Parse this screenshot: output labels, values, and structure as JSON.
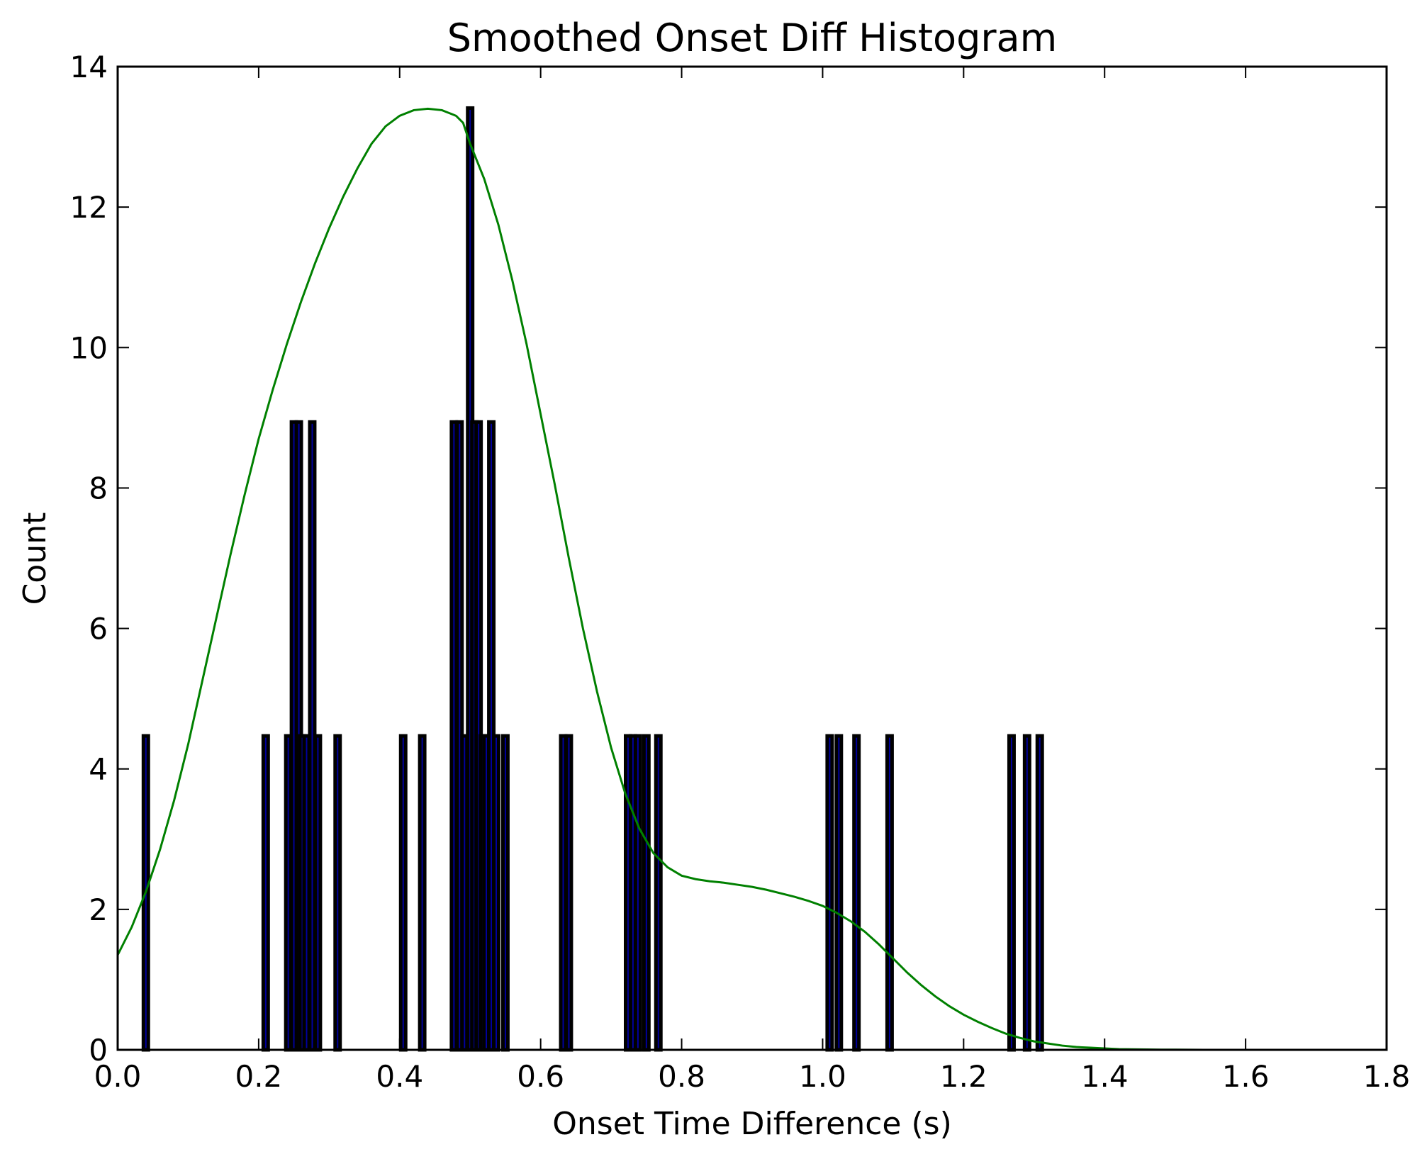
{
  "chart_data": {
    "type": "bar",
    "title": "Smoothed Onset Diff Histogram",
    "xlabel": "Onset Time Difference (s)",
    "ylabel": "Count",
    "xlim": [
      0.0,
      1.8
    ],
    "ylim": [
      0,
      14
    ],
    "xticks": [
      "0.0",
      "0.2",
      "0.4",
      "0.6",
      "0.8",
      "1.0",
      "1.2",
      "1.4",
      "1.6",
      "1.8"
    ],
    "yticks": [
      "0",
      "2",
      "4",
      "6",
      "8",
      "10",
      "12",
      "14"
    ],
    "grid": false,
    "legend": "none",
    "series": [
      {
        "kind": "histogram",
        "bar_width": 0.007,
        "bars": [
          {
            "x": 0.04,
            "y": 4.47
          },
          {
            "x": 0.21,
            "y": 4.47
          },
          {
            "x": 0.242,
            "y": 4.47
          },
          {
            "x": 0.25,
            "y": 8.94
          },
          {
            "x": 0.257,
            "y": 8.94
          },
          {
            "x": 0.262,
            "y": 4.47
          },
          {
            "x": 0.268,
            "y": 4.47
          },
          {
            "x": 0.276,
            "y": 8.94
          },
          {
            "x": 0.284,
            "y": 4.47
          },
          {
            "x": 0.312,
            "y": 4.47
          },
          {
            "x": 0.405,
            "y": 4.47
          },
          {
            "x": 0.432,
            "y": 4.47
          },
          {
            "x": 0.477,
            "y": 8.94
          },
          {
            "x": 0.485,
            "y": 8.94
          },
          {
            "x": 0.492,
            "y": 4.47
          },
          {
            "x": 0.5,
            "y": 13.41
          },
          {
            "x": 0.506,
            "y": 8.94
          },
          {
            "x": 0.512,
            "y": 8.94
          },
          {
            "x": 0.518,
            "y": 4.47
          },
          {
            "x": 0.523,
            "y": 4.47
          },
          {
            "x": 0.53,
            "y": 8.94
          },
          {
            "x": 0.537,
            "y": 4.47
          },
          {
            "x": 0.55,
            "y": 4.47
          },
          {
            "x": 0.632,
            "y": 4.47
          },
          {
            "x": 0.64,
            "y": 4.47
          },
          {
            "x": 0.724,
            "y": 4.47
          },
          {
            "x": 0.731,
            "y": 4.47
          },
          {
            "x": 0.738,
            "y": 4.47
          },
          {
            "x": 0.75,
            "y": 4.47
          },
          {
            "x": 0.767,
            "y": 4.47
          },
          {
            "x": 1.01,
            "y": 4.47
          },
          {
            "x": 1.023,
            "y": 4.47
          },
          {
            "x": 1.048,
            "y": 4.47
          },
          {
            "x": 1.095,
            "y": 4.47
          },
          {
            "x": 1.268,
            "y": 4.47
          },
          {
            "x": 1.29,
            "y": 4.47
          },
          {
            "x": 1.308,
            "y": 4.47
          }
        ]
      },
      {
        "kind": "line",
        "color": "#008000",
        "x": [
          0.0,
          0.02,
          0.04,
          0.06,
          0.08,
          0.1,
          0.12,
          0.14,
          0.16,
          0.18,
          0.2,
          0.22,
          0.24,
          0.26,
          0.28,
          0.3,
          0.32,
          0.34,
          0.36,
          0.38,
          0.4,
          0.42,
          0.44,
          0.46,
          0.48,
          0.49,
          0.5,
          0.52,
          0.54,
          0.56,
          0.58,
          0.6,
          0.62,
          0.64,
          0.66,
          0.68,
          0.7,
          0.72,
          0.74,
          0.76,
          0.78,
          0.8,
          0.82,
          0.84,
          0.86,
          0.88,
          0.9,
          0.92,
          0.94,
          0.96,
          0.98,
          1.0,
          1.02,
          1.04,
          1.06,
          1.08,
          1.1,
          1.12,
          1.14,
          1.16,
          1.18,
          1.2,
          1.22,
          1.24,
          1.26,
          1.28,
          1.3,
          1.32,
          1.34,
          1.36,
          1.38,
          1.4,
          1.42,
          1.44,
          1.46,
          1.48,
          1.5,
          1.52,
          1.54,
          1.56,
          1.58,
          1.6,
          1.62,
          1.64,
          1.66,
          1.68,
          1.7,
          1.72,
          1.74,
          1.76,
          1.78,
          1.8
        ],
        "y": [
          1.35,
          1.75,
          2.25,
          2.85,
          3.55,
          4.35,
          5.25,
          6.15,
          7.05,
          7.9,
          8.7,
          9.4,
          10.05,
          10.65,
          11.2,
          11.7,
          12.15,
          12.55,
          12.9,
          13.15,
          13.3,
          13.38,
          13.4,
          13.38,
          13.3,
          13.2,
          12.9,
          12.4,
          11.75,
          10.95,
          10.05,
          9.05,
          8.05,
          7.0,
          6.0,
          5.1,
          4.3,
          3.65,
          3.15,
          2.8,
          2.6,
          2.48,
          2.43,
          2.4,
          2.38,
          2.35,
          2.32,
          2.28,
          2.23,
          2.18,
          2.12,
          2.05,
          1.95,
          1.83,
          1.68,
          1.5,
          1.3,
          1.1,
          0.92,
          0.76,
          0.62,
          0.5,
          0.4,
          0.31,
          0.23,
          0.17,
          0.12,
          0.09,
          0.06,
          0.04,
          0.03,
          0.02,
          0.01,
          0.008,
          0.005,
          0.003,
          0.002,
          0.001,
          0.0,
          0.0,
          0.0,
          0.0,
          0.0,
          0.0,
          0.0,
          0.0,
          0.0,
          0.0,
          0.0,
          0.0,
          0.0,
          0.0
        ]
      }
    ]
  }
}
